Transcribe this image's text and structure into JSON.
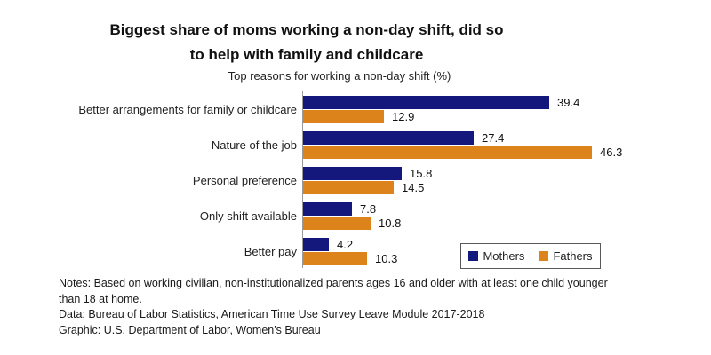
{
  "chart_data": {
    "type": "bar",
    "orientation": "horizontal",
    "title": "Biggest share of moms working a non-day shift, did so to help with family and childcare",
    "subtitle": "Top reasons for working a non-day shift (%)",
    "categories": [
      "Better arrangements for family or childcare",
      "Nature of the job",
      "Personal preference",
      "Only shift available",
      "Better pay"
    ],
    "series": [
      {
        "name": "Mothers",
        "color": "#14187d",
        "values": [
          39.4,
          27.4,
          15.8,
          7.8,
          4.2
        ]
      },
      {
        "name": "Fathers",
        "color": "#dd831c",
        "values": [
          12.9,
          46.3,
          14.5,
          10.8,
          10.3
        ]
      }
    ],
    "value_axis_range": [
      0,
      46.3
    ],
    "grid": "off",
    "legend_position": "bottom-right",
    "data_labels": "shown-at-bar-end"
  },
  "colors": {
    "mothers": "#14187d",
    "fathers": "#dd831c",
    "axis_line": "#9a9a9a",
    "legend_border": "#595959"
  },
  "legend": {
    "mothers_label": "Mothers",
    "fathers_label": "Fathers"
  },
  "footer": {
    "notes": "Notes: Based on working civilian, non-institutionalized parents ages 16 and older with at least one child younger than 18 at home.",
    "data_source": "Data: Bureau of Labor Statistics, American Time Use Survey Leave Module 2017-2018",
    "graphic_credit": "Graphic: U.S. Department of Labor, Women's Bureau"
  },
  "title_line1": "Biggest share of moms working a non-day shift, did so",
  "title_line2": "to help with family and childcare"
}
